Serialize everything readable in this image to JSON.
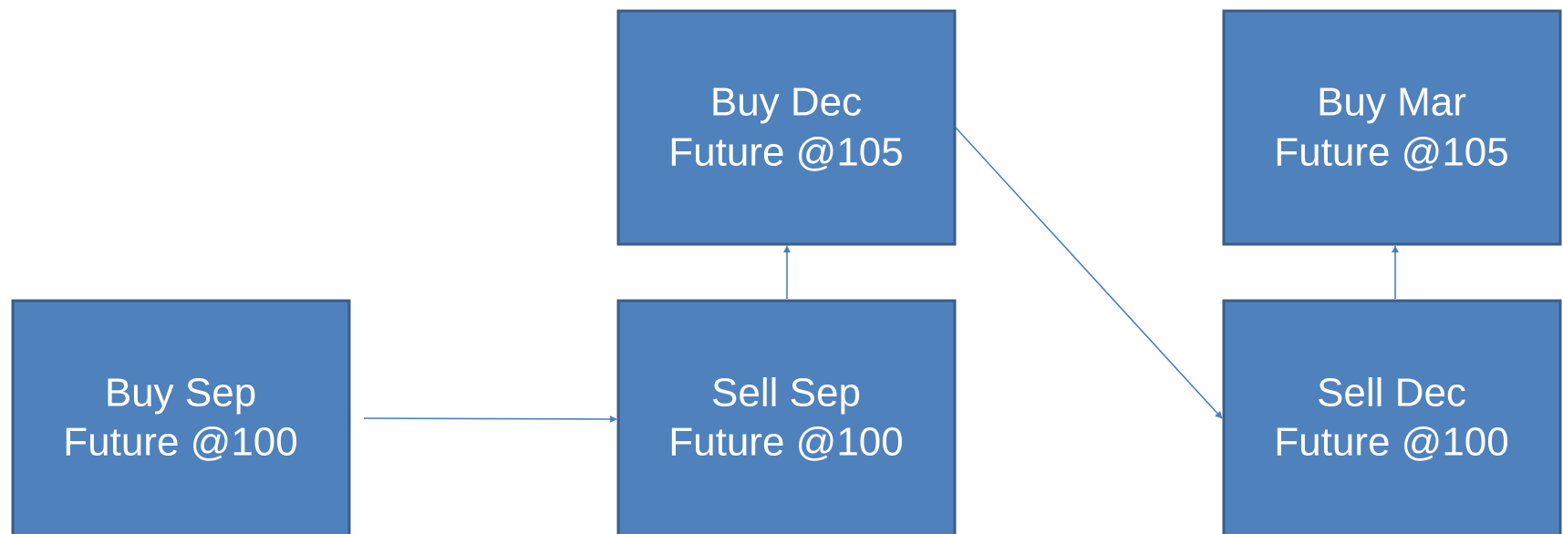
{
  "nodes": [
    {
      "lines": [
        "Buy Sep",
        "Future @100"
      ]
    },
    {
      "lines": [
        "Sell Sep",
        "Future @100"
      ]
    },
    {
      "lines": [
        "Buy Dec",
        "Future @105"
      ]
    },
    {
      "lines": [
        "Sell Dec",
        "Future @100"
      ]
    },
    {
      "lines": [
        "Buy Mar",
        "Future @105"
      ]
    }
  ]
}
